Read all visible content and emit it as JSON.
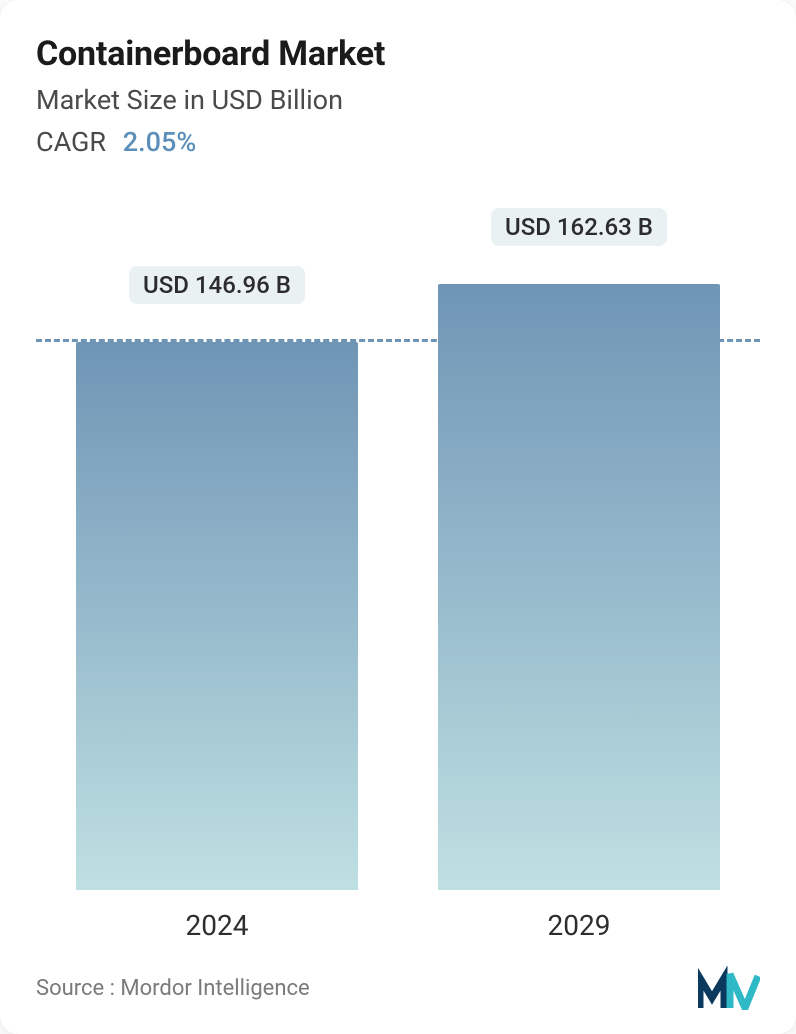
{
  "header": {
    "title": "Containerboard Market",
    "subtitle": "Market Size in USD Billion",
    "cagr_label": "CAGR",
    "cagr_value": "2.05%",
    "title_color": "#1b1b1b",
    "subtitle_color": "#4a4a4a",
    "cagr_value_color": "#5b8fb9",
    "title_fontsize": 34,
    "subtitle_fontsize": 27
  },
  "chart": {
    "type": "bar",
    "categories": [
      "2024",
      "2029"
    ],
    "values": [
      146.96,
      162.63
    ],
    "value_labels": [
      "USD 146.96 B",
      "USD 162.63 B"
    ],
    "ylim": [
      0,
      170
    ],
    "dashed_ref_value": 146.96,
    "dashed_line_color": "#6f95b6",
    "bar_gradient_top": "#6f95b6",
    "bar_gradient_bottom": "#bfe0e2",
    "badge_bg": "#eaf1f3",
    "badge_text_color": "#2c2c2c",
    "xlabel_fontsize": 28,
    "xlabel_color": "#2e2e2e",
    "badge_fontsize": 24,
    "bar_width_pct": 39,
    "background_color": "#ffffff"
  },
  "footer": {
    "source_text": "Source :  Mordor Intelligence",
    "source_color": "#7a7a7a",
    "logo_color_dark": "#0b3a5e",
    "logo_color_light": "#2fb8c5"
  }
}
